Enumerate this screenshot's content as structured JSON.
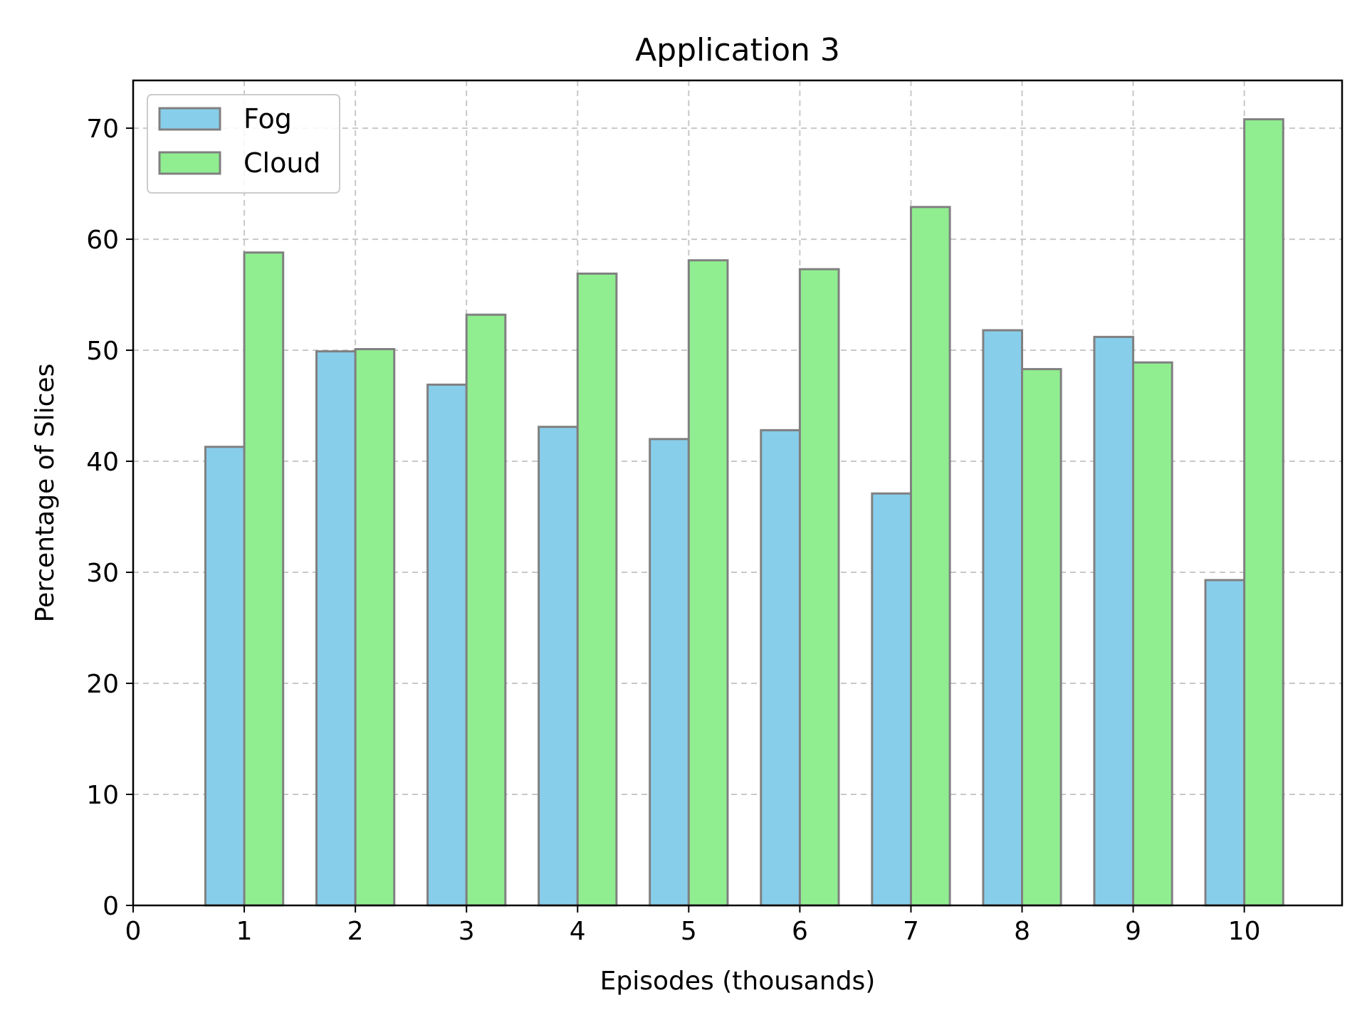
{
  "chart_data": {
    "type": "bar",
    "title": "Application 3",
    "xlabel": "Episodes (thousands)",
    "ylabel": "Percentage of Slices",
    "categories": [
      0,
      1,
      2,
      3,
      4,
      5,
      6,
      7,
      8,
      9,
      10
    ],
    "xticks": [
      "0",
      "1",
      "2",
      "3",
      "4",
      "5",
      "6",
      "7",
      "8",
      "9",
      "10"
    ],
    "yticks": [
      "0",
      "10",
      "20",
      "30",
      "40",
      "50",
      "60",
      "70"
    ],
    "ytick_values": [
      0,
      10,
      20,
      30,
      40,
      50,
      60,
      70
    ],
    "xlim": [
      0,
      10.88
    ],
    "ylim": [
      0,
      74.3
    ],
    "grid": true,
    "legend_position": "top-left",
    "series": [
      {
        "name": "Fog",
        "color": "#87ceeb",
        "values": [
          0,
          41.3,
          49.9,
          46.9,
          43.1,
          42.0,
          42.8,
          37.1,
          51.8,
          51.2,
          29.3
        ]
      },
      {
        "name": "Cloud",
        "color": "#90ee90",
        "values": [
          0,
          58.8,
          50.1,
          53.2,
          56.9,
          58.1,
          57.3,
          62.9,
          48.3,
          48.9,
          70.8
        ]
      }
    ]
  }
}
